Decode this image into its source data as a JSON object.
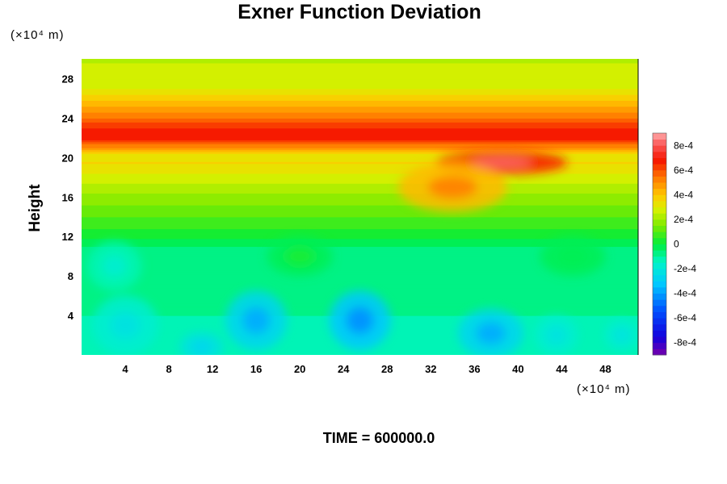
{
  "chart_data": {
    "type": "heatmap",
    "title": "Exner Function Deviation",
    "ylabel": "Height",
    "x_unit_label": "(×10⁴ m)",
    "y_unit_label": "(×10⁴ m)",
    "xlim": [
      0,
      51
    ],
    "ylim": [
      0,
      30
    ],
    "x_ticks": [
      4,
      8,
      12,
      16,
      20,
      24,
      28,
      32,
      36,
      40,
      44,
      48
    ],
    "y_ticks": [
      4,
      8,
      12,
      16,
      20,
      24,
      28
    ],
    "colorbar": {
      "range": [
        -0.0009,
        0.0009
      ],
      "levels": 36,
      "tick_values": [
        0.0008,
        0.0006,
        0.0004,
        0.0002,
        0,
        -0.0002,
        -0.0004,
        -0.0006,
        -0.0008
      ],
      "tick_labels": [
        "8e-4",
        "6e-4",
        "4e-4",
        "2e-4",
        "0",
        "-2e-4",
        "-4e-4",
        "-6e-4",
        "-8e-4"
      ]
    },
    "profile_by_height": [
      [
        0,
        -0.00012
      ],
      [
        4,
        -0.0001
      ],
      [
        8,
        -8e-05
      ],
      [
        11,
        -5e-05
      ],
      [
        12,
        2e-05
      ],
      [
        14,
        0.0001
      ],
      [
        16,
        0.00018
      ],
      [
        18,
        0.00028
      ],
      [
        19.5,
        0.00036
      ],
      [
        20.3,
        0.0003
      ],
      [
        21,
        0.00048
      ],
      [
        22,
        0.00068
      ],
      [
        23,
        0.00066
      ],
      [
        24,
        0.00055
      ],
      [
        25.5,
        0.00042
      ],
      [
        27,
        0.0003
      ],
      [
        30,
        0.00024
      ]
    ],
    "anomalies": [
      {
        "x": 38.5,
        "y": 19.5,
        "value": 0.0003,
        "rx": 6,
        "ry": 1.2
      },
      {
        "x": 34,
        "y": 17,
        "value": 0.00018,
        "rx": 5,
        "ry": 2.5
      },
      {
        "x": 3,
        "y": 9,
        "value": -8e-05,
        "rx": 2.5,
        "ry": 2.5
      },
      {
        "x": 16,
        "y": 3.5,
        "value": -0.00018,
        "rx": 2.8,
        "ry": 3
      },
      {
        "x": 25.5,
        "y": 3.5,
        "value": -0.0002,
        "rx": 2.8,
        "ry": 3
      },
      {
        "x": 37.5,
        "y": 2.2,
        "value": -0.00016,
        "rx": 3,
        "ry": 2.5
      },
      {
        "x": 4,
        "y": 3,
        "value": -8e-05,
        "rx": 3,
        "ry": 3
      },
      {
        "x": 11,
        "y": 0.8,
        "value": -0.0001,
        "rx": 2,
        "ry": 1.5
      },
      {
        "x": 43.5,
        "y": 2,
        "value": -8e-05,
        "rx": 2,
        "ry": 2
      },
      {
        "x": 49.5,
        "y": 2,
        "value": -8e-05,
        "rx": 1.6,
        "ry": 1.6
      },
      {
        "x": 20,
        "y": 10,
        "value": 4e-05,
        "rx": 3,
        "ry": 2
      },
      {
        "x": 45,
        "y": 10,
        "value": 3e-05,
        "rx": 3,
        "ry": 2
      }
    ]
  },
  "footer": {
    "time_label": "TIME = 600000.0"
  }
}
